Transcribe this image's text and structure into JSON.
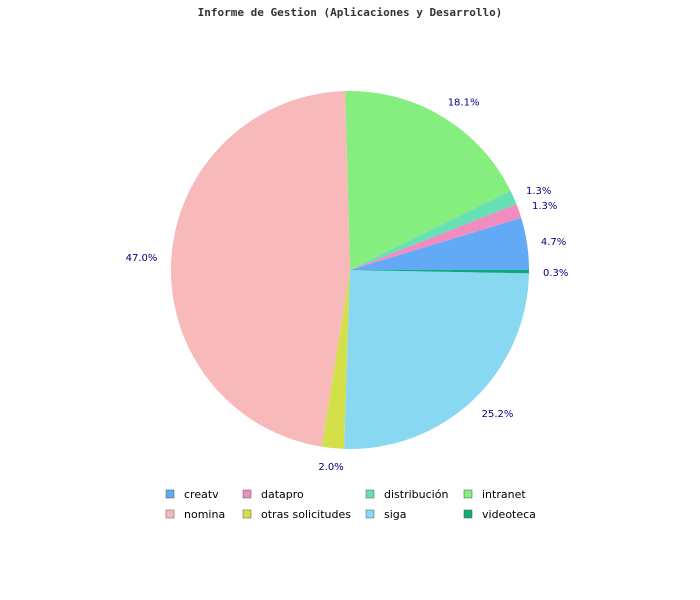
{
  "chart_data": {
    "type": "pie",
    "title": "Informe de Gestion (Aplicaciones y Desarrollo)",
    "slices": [
      {
        "name": "creatv",
        "value": 4.7,
        "label": "4.7%",
        "color": "#62aaf5"
      },
      {
        "name": "datapro",
        "value": 1.3,
        "label": "1.3%",
        "color": "#f08cc0"
      },
      {
        "name": "distribución",
        "value": 1.3,
        "label": "1.3%",
        "color": "#66e0b4"
      },
      {
        "name": "intranet",
        "value": 18.1,
        "label": "18.1%",
        "color": "#86ee7e"
      },
      {
        "name": "nomina",
        "value": 47.0,
        "label": "47.0%",
        "color": "#f7b9b9"
      },
      {
        "name": "otras solicitudes",
        "value": 2.0,
        "label": "2.0%",
        "color": "#d4e04a"
      },
      {
        "name": "siga",
        "value": 25.2,
        "label": "25.2%",
        "color": "#88d8f2"
      },
      {
        "name": "videoteca",
        "value": 0.3,
        "label": "0.3%",
        "color": "#0eaa78"
      }
    ],
    "legend_placement": "bottom",
    "legend_columns": 4
  }
}
